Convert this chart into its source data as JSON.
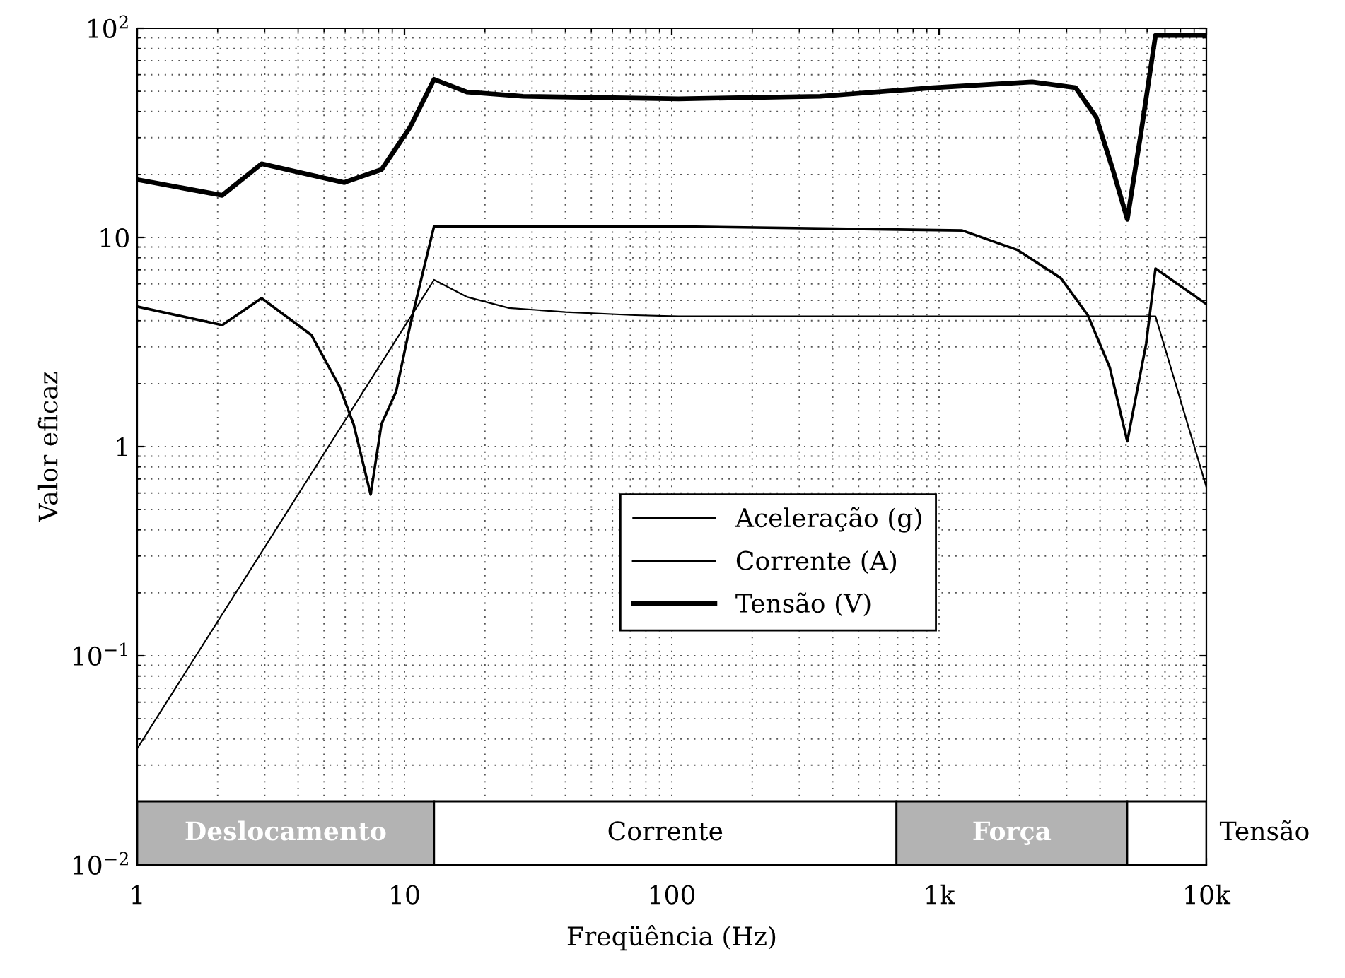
{
  "chart_data": {
    "type": "line",
    "xlabel": "Freqüência (Hz)",
    "ylabel": "Valor eficaz",
    "log": "xy",
    "xlim": [
      1,
      10000
    ],
    "ylim": [
      0.01,
      100
    ],
    "xticks": [
      1,
      10,
      100,
      {
        "value": 1000,
        "label": "1k"
      },
      {
        "value": 10000,
        "label": "10k"
      }
    ],
    "yticks": [
      {
        "value": 0.01,
        "label": "10$^{−2}$"
      },
      {
        "value": 0.1,
        "label": "10$^{−1}$"
      },
      1,
      10,
      {
        "value": 100,
        "label": "10$^{2}$"
      }
    ],
    "grid": true,
    "legend": "center",
    "marker": "none",
    "line_style": "solid",
    "series": [
      {
        "name": "Aceleração (g)",
        "color": "#000000",
        "x": [
          1,
          12.9,
          17.1,
          24.6,
          40,
          73,
          106,
          1000,
          6450,
          10000
        ],
        "values": [
          0.036,
          6.27,
          5.2,
          4.6,
          4.4,
          4.25,
          4.2,
          4.2,
          4.2,
          0.64
        ]
      },
      {
        "name": "Corrente (A)",
        "color": "#000000",
        "x": [
          1,
          2.08,
          2.92,
          4.48,
          5.7,
          6.45,
          7.47,
          8.2,
          9.3,
          10.5,
          11.9,
          12.9,
          100,
          1220,
          1970,
          2850,
          3600,
          4350,
          5060,
          5950,
          6450,
          10000
        ],
        "values": [
          4.67,
          3.81,
          5.12,
          3.42,
          1.95,
          1.28,
          0.59,
          1.28,
          1.83,
          3.8,
          7.4,
          11.3,
          11.3,
          10.8,
          8.7,
          6.4,
          4.25,
          2.39,
          1.06,
          3.1,
          7.1,
          4.8
        ]
      },
      {
        "name": "Tensão (V)",
        "color": "#000000",
        "x": [
          1,
          2.08,
          2.92,
          5.93,
          8.2,
          10.5,
          12.9,
          17.1,
          27.8,
          106,
          359,
          950,
          2230,
          3240,
          3870,
          4470,
          5060,
          5700,
          6450,
          10000
        ],
        "values": [
          18.9,
          15.9,
          22.5,
          18.3,
          21.1,
          33.7,
          57,
          49.6,
          47.3,
          46,
          47.3,
          52,
          55.4,
          52,
          37.6,
          21,
          12.2,
          32,
          92.4,
          92.4
        ]
      }
    ],
    "bands": [
      {
        "axis": "x",
        "from": 1,
        "to": 12.9,
        "label": "Deslocamento",
        "color": "#b3b3b3"
      },
      {
        "axis": "x",
        "from": 12.9,
        "to": 693,
        "label": "Corrente",
        "color": "#ffffff"
      },
      {
        "axis": "x",
        "from": 693,
        "to": 5055,
        "label": "Força",
        "color": "#b3b3b3"
      },
      {
        "axis": "x",
        "from": 5055,
        "to": 10000,
        "label": "Tensão",
        "color": "#ffffff"
      }
    ]
  }
}
